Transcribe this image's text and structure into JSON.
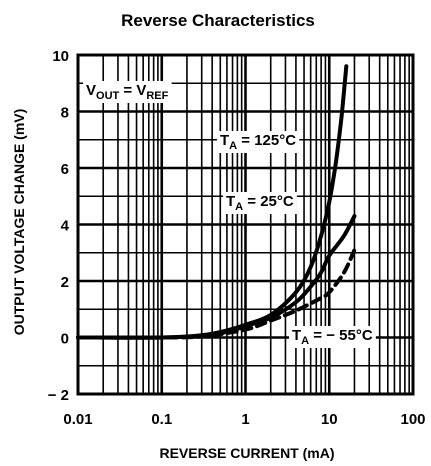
{
  "chart_data": {
    "type": "line",
    "title": "Reverse Characteristics",
    "xlabel": "REVERSE CURRENT (mA)",
    "ylabel": "OUTPUT VOLTAGE CHANGE (mV)",
    "x_scale": "log",
    "xlim": [
      0.01,
      100
    ],
    "ylim": [
      -2,
      10
    ],
    "x_ticks": [
      "0.01",
      "0.1",
      "1",
      "10",
      "100"
    ],
    "y_ticks": [
      "− 2",
      "0",
      "2",
      "4",
      "6",
      "8",
      "10"
    ],
    "grid": true,
    "annotation_condition": {
      "main": "V",
      "sub1": "OUT",
      "eq": " = V",
      "sub2": "REF"
    },
    "series": [
      {
        "label": {
          "main": "T",
          "sub": "A",
          "rest": " = 125°C"
        },
        "style": "solid",
        "x": [
          0.01,
          0.1,
          0.3,
          0.6,
          1,
          2,
          4,
          6,
          8,
          10,
          12,
          14,
          16
        ],
        "y": [
          0,
          0,
          0.08,
          0.25,
          0.45,
          0.8,
          1.6,
          2.5,
          3.6,
          4.8,
          6.2,
          7.8,
          9.6
        ]
      },
      {
        "label": {
          "main": "T",
          "sub": "A",
          "rest": " = 25°C"
        },
        "style": "solid",
        "x": [
          0.01,
          0.1,
          0.3,
          0.6,
          1,
          2,
          4,
          6,
          8,
          10,
          15,
          20
        ],
        "y": [
          0,
          0,
          0.06,
          0.2,
          0.4,
          0.7,
          1.25,
          1.8,
          2.3,
          2.9,
          3.6,
          4.3
        ]
      },
      {
        "label": {
          "main": "T",
          "sub": "A",
          "rest": " = − 55°C"
        },
        "style": "dashed",
        "x": [
          0.01,
          0.1,
          0.3,
          1,
          2,
          4,
          8,
          10,
          15,
          20
        ],
        "y": [
          0,
          0,
          0.04,
          0.28,
          0.6,
          0.95,
          1.4,
          1.6,
          2.3,
          3.1
        ]
      }
    ]
  }
}
